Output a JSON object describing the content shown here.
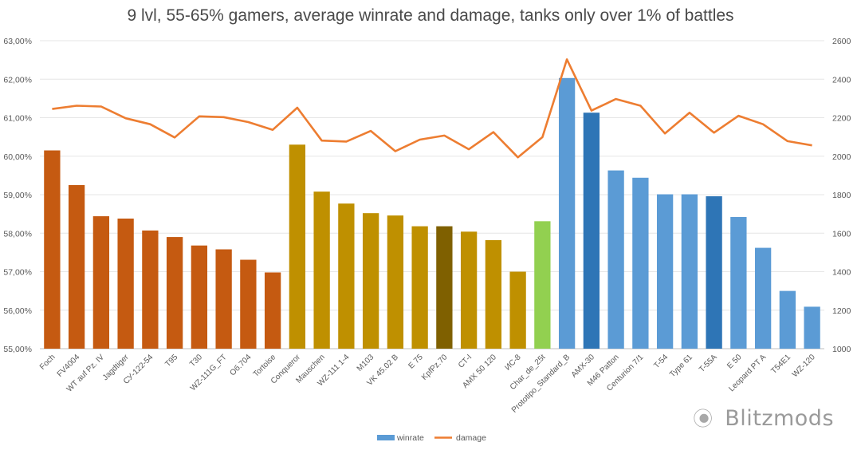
{
  "chart_data": {
    "type": "bar",
    "title": "9 lvl, 55-65% gamers, average winrate and damage, tanks only over 1% of battles",
    "categories": [
      "Foch",
      "FV4004",
      "WT auf Pz. IV",
      "Jagdtiger",
      "СУ-122-54",
      "T95",
      "T30",
      "WZ-111G_FT",
      "Об.704",
      "Tortoise",
      "Conqueror",
      "Mauschen",
      "WZ-111 1-4",
      "M103",
      "VK 45.02 B",
      "E 75",
      "KpfPz.70",
      "СТ-I",
      "AMX 50 120",
      "ИС-8",
      "Char_de_25t",
      "Prototipo_Standard_B",
      "AMX-30",
      "M46 Patton",
      "Centurion 7/1",
      "T-54",
      "Type 61",
      "T-55A",
      "E 50",
      "Leopard PT A",
      "T54E1",
      "WZ-120"
    ],
    "series": [
      {
        "name": "winrate",
        "axis": "left",
        "chart_type": "bar",
        "values": [
          60.15,
          59.25,
          58.44,
          58.38,
          58.07,
          57.9,
          57.68,
          57.58,
          57.31,
          56.98,
          60.3,
          59.08,
          58.77,
          58.52,
          58.46,
          58.18,
          58.18,
          58.04,
          57.82,
          57.0,
          58.31,
          62.03,
          61.13,
          59.63,
          59.44,
          59.01,
          59.01,
          58.96,
          58.42,
          57.62,
          56.5,
          56.09
        ],
        "colors": [
          "#c55a11",
          "#c55a11",
          "#c55a11",
          "#c55a11",
          "#c55a11",
          "#c55a11",
          "#c55a11",
          "#c55a11",
          "#c55a11",
          "#c55a11",
          "#bf9000",
          "#bf9000",
          "#bf9000",
          "#bf9000",
          "#bf9000",
          "#bf9000",
          "#7f6000",
          "#bf9000",
          "#bf9000",
          "#bf9000",
          "#92d050",
          "#5b9bd5",
          "#2e75b6",
          "#5b9bd5",
          "#5b9bd5",
          "#5b9bd5",
          "#5b9bd5",
          "#2e75b6",
          "#5b9bd5",
          "#5b9bd5",
          "#5b9bd5",
          "#5b9bd5"
        ]
      },
      {
        "name": "damage",
        "axis": "right",
        "chart_type": "line",
        "color": "#ed7d31",
        "values": [
          2245,
          2262,
          2258,
          2197,
          2166,
          2097,
          2207,
          2203,
          2177,
          2137,
          2252,
          2081,
          2076,
          2131,
          2026,
          2086,
          2107,
          2036,
          2125,
          1994,
          2099,
          2503,
          2237,
          2297,
          2262,
          2118,
          2226,
          2122,
          2210,
          2166,
          2078,
          2056
        ]
      }
    ],
    "yleft": {
      "min": 55,
      "max": 63,
      "step": 1,
      "format": "percent"
    },
    "yright": {
      "min": 1000,
      "max": 2600,
      "step": 200
    },
    "grid": true,
    "legend": {
      "position": "bottom",
      "items": [
        {
          "label": "winrate",
          "color": "#5b9bd5"
        },
        {
          "label": "damage",
          "color": "#ed7d31"
        }
      ]
    }
  },
  "watermark": {
    "icon": "wechat-icon",
    "text": "Blitzmods"
  }
}
